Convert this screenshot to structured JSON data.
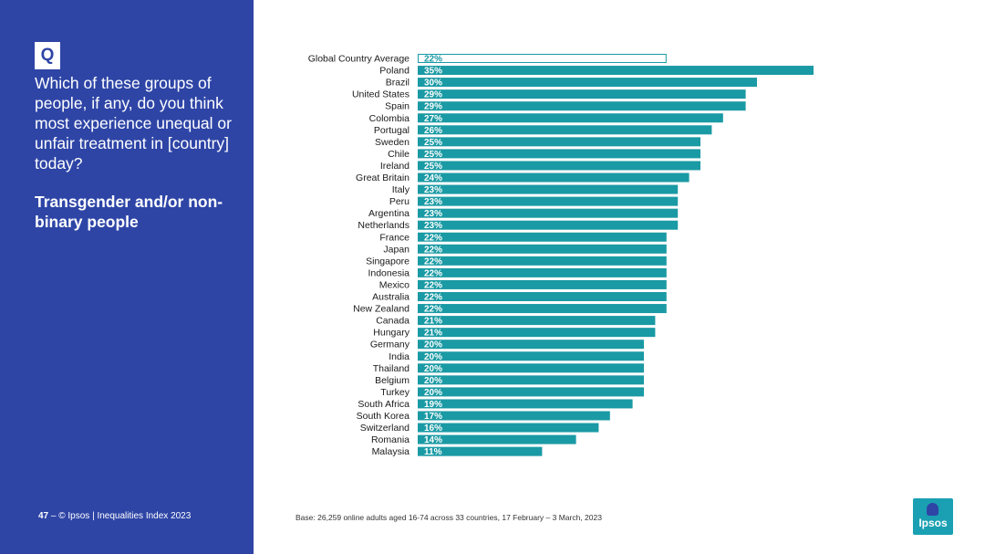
{
  "left_panel": {
    "badge": "Q",
    "question": "Which of these groups of people, if any, do you think most experience unequal or unfair treatment in [country] today?",
    "subject": "Transgender and/or non-binary people",
    "page_number": "47",
    "footer": "© Ipsos | Inequalities Index 2023"
  },
  "base_note": "Base: 26,259 online adults aged 16-74 across 33 countries, 17 February – 3 March, 2023",
  "logo": {
    "text": "Ipsos"
  },
  "colors": {
    "panel": "#2e45a6",
    "bar": "#1a9aa4",
    "highlight_outline": "#1a9aa4",
    "logo": "#1aa0b2"
  },
  "chart_data": {
    "type": "bar",
    "orientation": "horizontal",
    "categories": [
      "Global Country Average",
      "Poland",
      "Brazil",
      "United States",
      "Spain",
      "Colombia",
      "Portugal",
      "Sweden",
      "Chile",
      "Ireland",
      "Great Britain",
      "Italy",
      "Peru",
      "Argentina",
      "Netherlands",
      "France",
      "Japan",
      "Singapore",
      "Indonesia",
      "Mexico",
      "Australia",
      "New Zealand",
      "Canada",
      "Hungary",
      "Germany",
      "India",
      "Thailand",
      "Belgium",
      "Turkey",
      "South Africa",
      "South Korea",
      "Switzerland",
      "Romania",
      "Malaysia"
    ],
    "values": [
      22,
      35,
      30,
      29,
      29,
      27,
      26,
      25,
      25,
      25,
      24,
      23,
      23,
      23,
      23,
      22,
      22,
      22,
      22,
      22,
      22,
      22,
      21,
      21,
      20,
      20,
      20,
      20,
      20,
      19,
      17,
      16,
      14,
      11
    ],
    "labels": [
      "22%",
      "35%",
      "30%",
      "29%",
      "29%",
      "27%",
      "26%",
      "25%",
      "25%",
      "25%",
      "24%",
      "23%",
      "23%",
      "23%",
      "23%",
      "22%",
      "22%",
      "22%",
      "22%",
      "22%",
      "22%",
      "22%",
      "21%",
      "21%",
      "20%",
      "20%",
      "20%",
      "20%",
      "20%",
      "19%",
      "17%",
      "16%",
      "14%",
      "11%"
    ],
    "highlight_index": 0,
    "xlim": [
      0,
      35
    ],
    "grid": false,
    "legend": "none"
  }
}
